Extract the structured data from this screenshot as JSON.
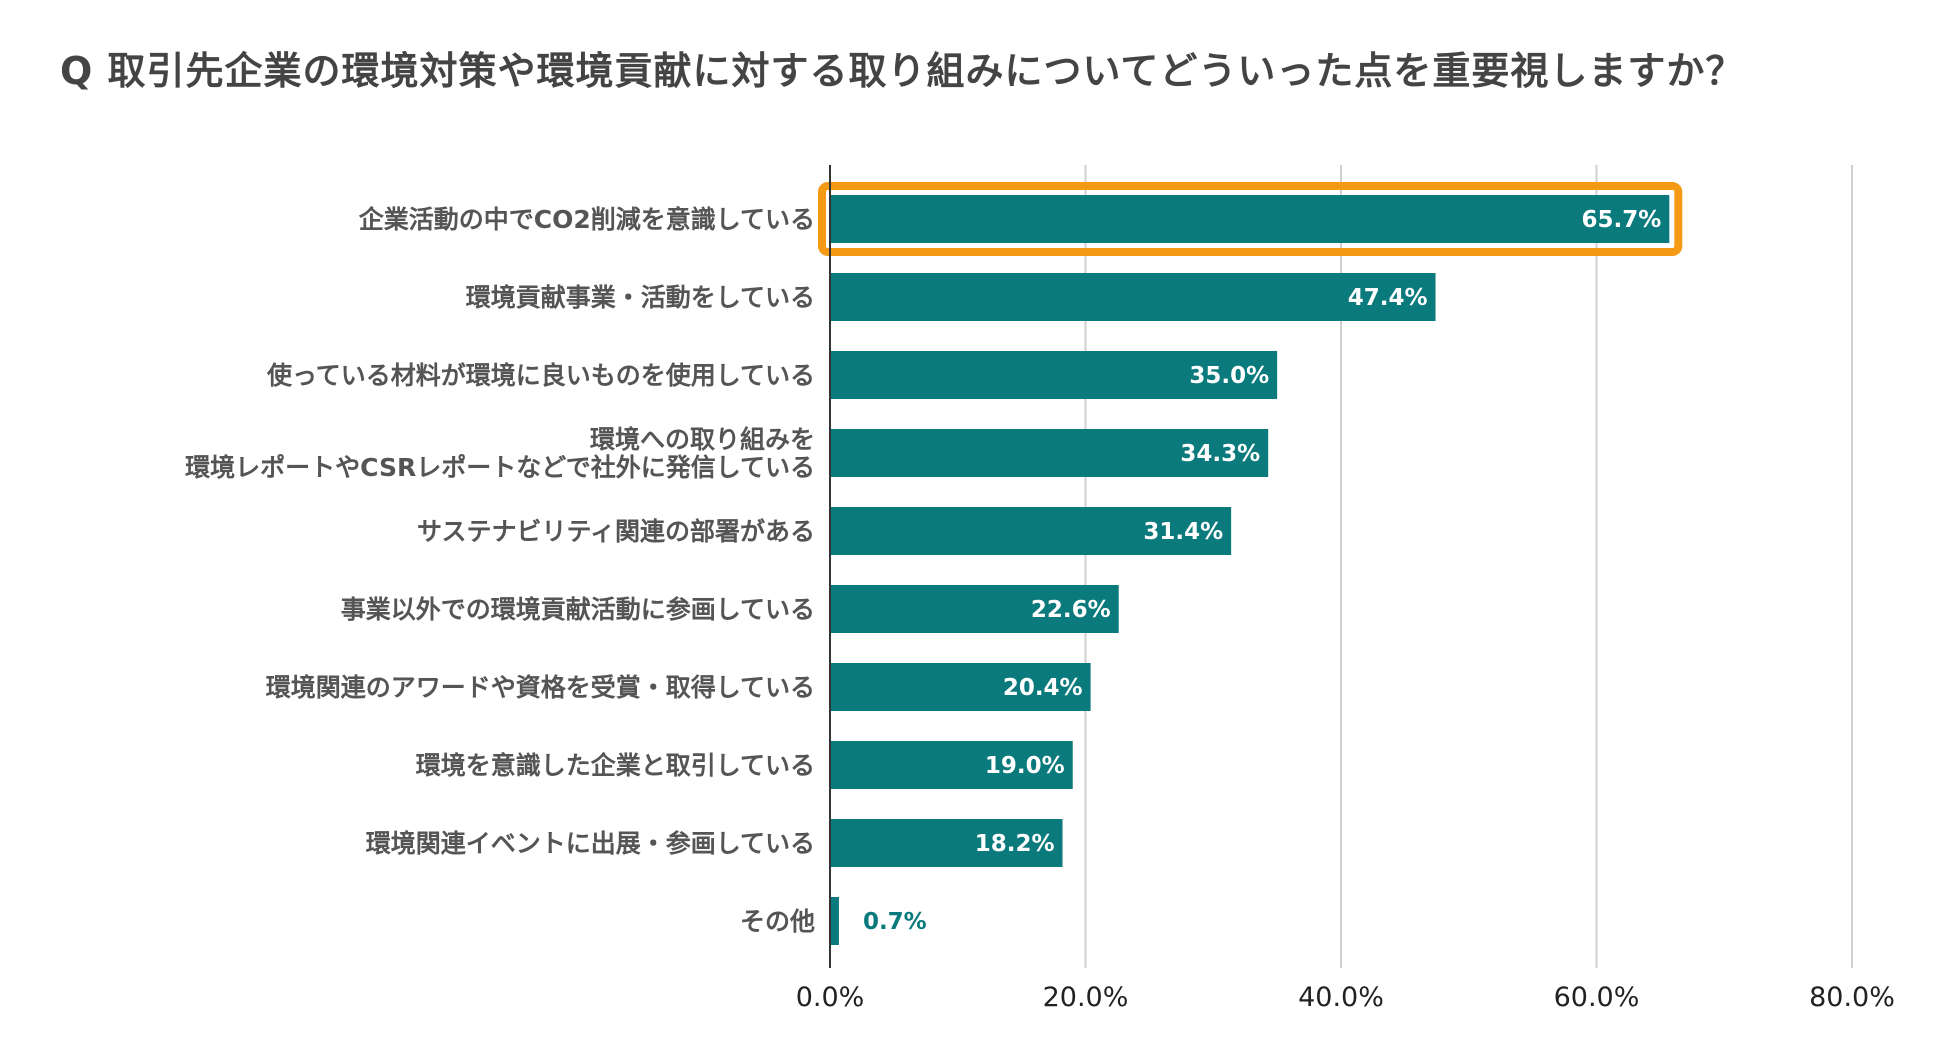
{
  "chart_data": {
    "type": "bar",
    "orientation": "horizontal",
    "title": "Q 取引先企業の環境対策や環境貢献に対する取り組みについてどういった点を重要視しますか？",
    "categories": [
      [
        "企業活動の中でCO2削減を意識している"
      ],
      [
        "環境貢献事業・活動をしている"
      ],
      [
        "使っている材料が環境に良いものを使用している"
      ],
      [
        "環境への取り組みを",
        "環境レポートやCSRレポートなどで社外に発信している"
      ],
      [
        "サステナビリティ関連の部署がある"
      ],
      [
        "事業以外での環境貢献活動に参画している"
      ],
      [
        "環境関連のアワードや資格を受賞・取得している"
      ],
      [
        "環境を意識した企業と取引している"
      ],
      [
        "環境関連イベントに出展・参画している"
      ],
      [
        "その他"
      ]
    ],
    "values": [
      65.7,
      47.4,
      35.0,
      34.3,
      31.4,
      22.6,
      20.4,
      19.0,
      18.2,
      0.7
    ],
    "value_labels": [
      "65.7%",
      "47.4%",
      "35.0%",
      "34.3%",
      "31.4%",
      "22.6%",
      "20.4%",
      "19.0%",
      "18.2%",
      "0.7%"
    ],
    "xlim": [
      0,
      80
    ],
    "x_ticks": [
      0,
      20,
      40,
      60,
      80
    ],
    "x_tick_labels": [
      "0.0%",
      "20.0%",
      "40.0%",
      "60.0%",
      "80.0%"
    ],
    "highlight_index": 0,
    "grid": true,
    "colors": {
      "bar": "#0b7a7c",
      "highlight_border": "#f59a14",
      "grid": "#d0d0d0",
      "axis": "#333333",
      "label_inside": "#ffffff",
      "label_outside": "#0b7a7c"
    }
  }
}
